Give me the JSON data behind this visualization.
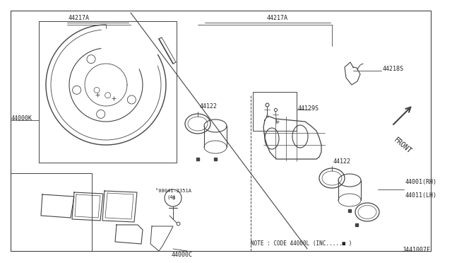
{
  "bg_color": "#ffffff",
  "line_color": "#444444",
  "text_color": "#222222",
  "diagram_id": "J441007F",
  "note": "NOTE : CODE 44000L (INC.....■ )",
  "figsize": [
    6.4,
    3.72
  ],
  "dpi": 100,
  "xlim": [
    0,
    640
  ],
  "ylim": [
    0,
    372
  ]
}
